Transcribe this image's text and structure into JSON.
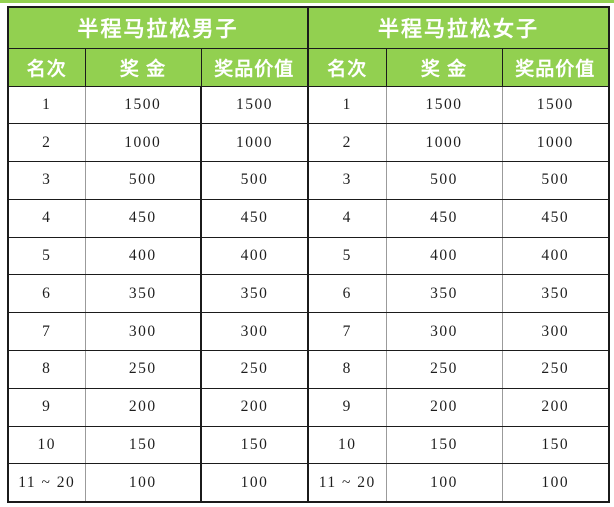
{
  "page": {
    "accent_green": "#92D050",
    "border_black": "#1b1b1b",
    "grid_gray": "#9b9b9b",
    "background": "#ffffff"
  },
  "tables": [
    {
      "title": "半程马拉松男子",
      "columns": [
        "名次",
        "奖 金",
        "奖品价值"
      ],
      "rows": [
        [
          "1",
          "1500",
          "1500"
        ],
        [
          "2",
          "1000",
          "1000"
        ],
        [
          "3",
          "500",
          "500"
        ],
        [
          "4",
          "450",
          "450"
        ],
        [
          "5",
          "400",
          "400"
        ],
        [
          "6",
          "350",
          "350"
        ],
        [
          "7",
          "300",
          "300"
        ],
        [
          "8",
          "250",
          "250"
        ],
        [
          "9",
          "200",
          "200"
        ],
        [
          "10",
          "150",
          "150"
        ],
        [
          "11 ~ 20",
          "100",
          "100"
        ]
      ]
    },
    {
      "title": "半程马拉松女子",
      "columns": [
        "名次",
        "奖 金",
        "奖品价值"
      ],
      "rows": [
        [
          "1",
          "1500",
          "1500"
        ],
        [
          "2",
          "1000",
          "1000"
        ],
        [
          "3",
          "500",
          "500"
        ],
        [
          "4",
          "450",
          "450"
        ],
        [
          "5",
          "400",
          "400"
        ],
        [
          "6",
          "350",
          "350"
        ],
        [
          "7",
          "300",
          "300"
        ],
        [
          "8",
          "250",
          "250"
        ],
        [
          "9",
          "200",
          "200"
        ],
        [
          "10",
          "150",
          "150"
        ],
        [
          "11 ~ 20",
          "100",
          "100"
        ]
      ]
    }
  ]
}
